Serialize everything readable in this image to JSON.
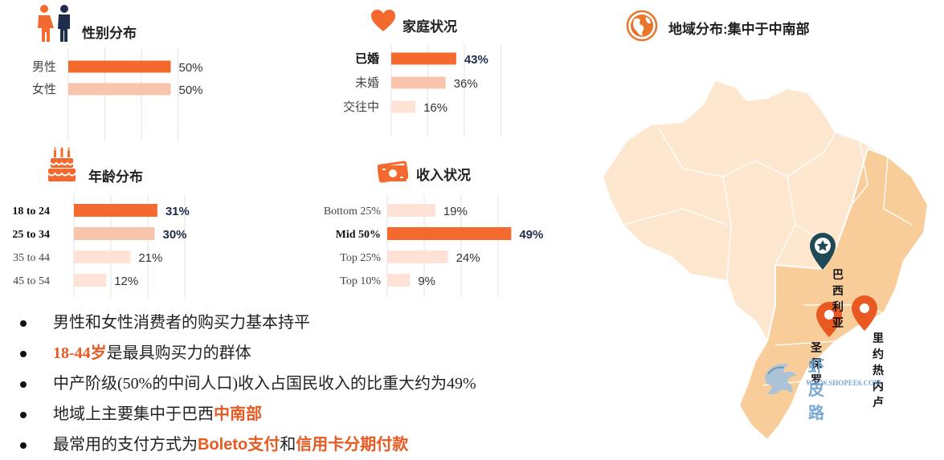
{
  "colors": {
    "accent": "#f4692e",
    "light": "#f9c4ac",
    "lighter": "#fde2d5",
    "value_bold": "#1f2d4d",
    "map_fill": "#fde7cf",
    "map_region": "#f9cd9a"
  },
  "panels": {
    "gender": {
      "title": "性别分布",
      "icon": "male-female-icon"
    },
    "family": {
      "title": "家庭状况",
      "icon": "heart-icon"
    },
    "age": {
      "title": "年龄分布",
      "icon": "birthday-cake-icon"
    },
    "income": {
      "title": "收入状况",
      "icon": "money-icon"
    },
    "region": {
      "title": "地域分布:集中于中南部",
      "icon": "globe-icon"
    }
  },
  "chart_data": [
    {
      "id": "gender",
      "type": "bar",
      "orientation": "horizontal",
      "categories": [
        "男性",
        "女性"
      ],
      "values": [
        50,
        50
      ],
      "labels": [
        "50%",
        "50%"
      ],
      "highlight": [
        true,
        false
      ],
      "bold": [
        false,
        false
      ],
      "xlim": [
        0,
        100
      ],
      "grid": true
    },
    {
      "id": "family",
      "type": "bar",
      "orientation": "horizontal",
      "categories": [
        "已婚",
        "未婚",
        "交往中"
      ],
      "values": [
        43,
        36,
        16
      ],
      "labels": [
        "43%",
        "36%",
        "16%"
      ],
      "highlight": [
        true,
        false,
        false
      ],
      "bold": [
        true,
        false,
        false
      ],
      "xlim": [
        0,
        100
      ],
      "grid": true
    },
    {
      "id": "age",
      "type": "bar",
      "orientation": "horizontal",
      "categories": [
        "18 to 24",
        "25 to 34",
        "35 to 44",
        "45 to 54"
      ],
      "values": [
        31,
        30,
        21,
        12
      ],
      "labels": [
        "31%",
        "30%",
        "21%",
        "12%"
      ],
      "highlight": [
        true,
        false,
        false,
        false
      ],
      "bold": [
        true,
        true,
        false,
        false
      ],
      "xlim": [
        0,
        100
      ],
      "grid": true
    },
    {
      "id": "income",
      "type": "bar",
      "orientation": "horizontal",
      "categories": [
        "Bottom 25%",
        "Mid 50%",
        "Top 25%",
        "Top 10%"
      ],
      "values": [
        19,
        49,
        24,
        9
      ],
      "labels": [
        "19%",
        "49%",
        "24%",
        "9%"
      ],
      "highlight": [
        false,
        true,
        false,
        false
      ],
      "bold": [
        false,
        true,
        false,
        false
      ],
      "xlim": [
        0,
        100
      ],
      "grid": true
    }
  ],
  "map": {
    "cities": [
      {
        "name": "巴西利亚",
        "marker": "star-pin-icon"
      },
      {
        "name": "圣保罗",
        "marker": "map-pin-icon"
      },
      {
        "name": "里约热内卢",
        "marker": "map-pin-icon"
      }
    ],
    "watermark": {
      "logo": "虾皮路",
      "url": "WWW.SHOPEE6.COM"
    }
  },
  "bullets": [
    [
      {
        "t": "男性和女性消费者的购买力基本持平",
        "s": "n"
      }
    ],
    [
      {
        "t": "18-44岁",
        "s": "h"
      },
      {
        "t": "是最具购买力的群体",
        "s": "n"
      }
    ],
    [
      {
        "t": "中产阶级(50%的中间人口)收入占国民收入的比重大约为49%",
        "s": "n"
      }
    ],
    [
      {
        "t": "地域上主要集中于巴西",
        "s": "n"
      },
      {
        "t": "中南部",
        "s": "h"
      }
    ],
    [
      {
        "t": "最常用的支付方式为",
        "s": "n"
      },
      {
        "t": "Boleto支付",
        "s": "hs"
      },
      {
        "t": "和",
        "s": "n"
      },
      {
        "t": "信用卡分期付款",
        "s": "h"
      }
    ]
  ]
}
